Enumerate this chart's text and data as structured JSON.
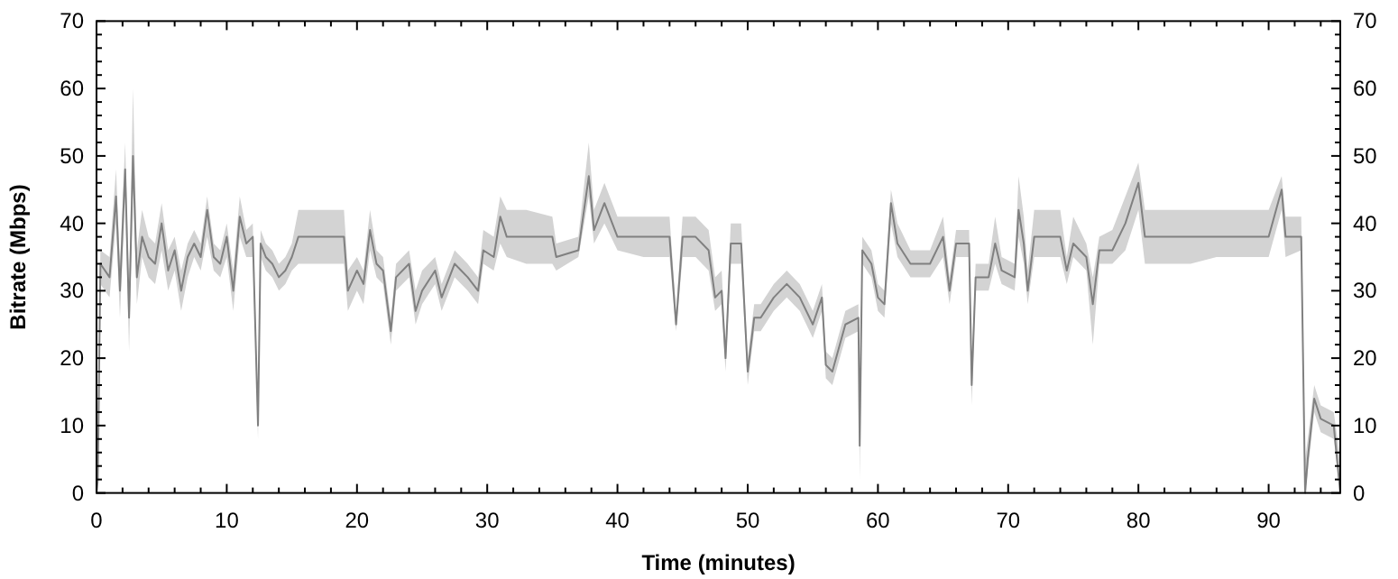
{
  "chart_data": {
    "type": "line",
    "xlabel": "Time (minutes)",
    "ylabel": "Bitrate (Mbps)",
    "xlim": [
      0,
      95.5
    ],
    "ylim": [
      0,
      70
    ],
    "y2lim": [
      0,
      70
    ],
    "xticks": [
      0,
      {
        "value": 2,
        "label": null
      },
      {
        "value": 4,
        "label": null
      },
      {
        "value": 6,
        "label": null
      },
      {
        "value": 8,
        "label": null
      },
      10,
      {
        "value": 12,
        "label": null
      },
      {
        "value": 14,
        "label": null
      },
      {
        "value": 16,
        "label": null
      },
      {
        "value": 18,
        "label": null
      },
      20,
      {
        "value": 22,
        "label": null
      },
      {
        "value": 24,
        "label": null
      },
      {
        "value": 26,
        "label": null
      },
      {
        "value": 28,
        "label": null
      },
      30,
      {
        "value": 32,
        "label": null
      },
      {
        "value": 34,
        "label": null
      },
      {
        "value": 36,
        "label": null
      },
      {
        "value": 38,
        "label": null
      },
      40,
      {
        "value": 42,
        "label": null
      },
      {
        "value": 44,
        "label": null
      },
      {
        "value": 46,
        "label": null
      },
      {
        "value": 48,
        "label": null
      },
      50,
      {
        "value": 52,
        "label": null
      },
      {
        "value": 54,
        "label": null
      },
      {
        "value": 56,
        "label": null
      },
      {
        "value": 58,
        "label": null
      },
      60,
      {
        "value": 62,
        "label": null
      },
      {
        "value": 64,
        "label": null
      },
      {
        "value": 66,
        "label": null
      },
      {
        "value": 68,
        "label": null
      },
      70,
      {
        "value": 72,
        "label": null
      },
      {
        "value": 74,
        "label": null
      },
      {
        "value": 76,
        "label": null
      },
      {
        "value": 78,
        "label": null
      },
      80,
      {
        "value": 82,
        "label": null
      },
      {
        "value": 84,
        "label": null
      },
      {
        "value": 86,
        "label": null
      },
      {
        "value": 88,
        "label": null
      },
      90,
      {
        "value": 92,
        "label": null
      },
      {
        "value": 94,
        "label": null
      }
    ],
    "yticks": [
      0,
      {
        "value": 2,
        "label": null
      },
      {
        "value": 4,
        "label": null
      },
      {
        "value": 6,
        "label": null
      },
      {
        "value": 8,
        "label": null
      },
      10,
      {
        "value": 12,
        "label": null
      },
      {
        "value": 14,
        "label": null
      },
      {
        "value": 16,
        "label": null
      },
      {
        "value": 18,
        "label": null
      },
      20,
      {
        "value": 22,
        "label": null
      },
      {
        "value": 24,
        "label": null
      },
      {
        "value": 26,
        "label": null
      },
      {
        "value": 28,
        "label": null
      },
      30,
      {
        "value": 32,
        "label": null
      },
      {
        "value": 34,
        "label": null
      },
      {
        "value": 36,
        "label": null
      },
      {
        "value": 38,
        "label": null
      },
      40,
      {
        "value": 42,
        "label": null
      },
      {
        "value": 44,
        "label": null
      },
      {
        "value": 46,
        "label": null
      },
      {
        "value": 48,
        "label": null
      },
      50,
      {
        "value": 52,
        "label": null
      },
      {
        "value": 54,
        "label": null
      },
      {
        "value": 56,
        "label": null
      },
      {
        "value": 58,
        "label": null
      },
      60,
      {
        "value": 62,
        "label": null
      },
      {
        "value": 64,
        "label": null
      },
      {
        "value": 66,
        "label": null
      },
      {
        "value": 68,
        "label": null
      },
      70
    ],
    "y2ticks": [
      0,
      {
        "value": 2,
        "label": null
      },
      {
        "value": 4,
        "label": null
      },
      {
        "value": 6,
        "label": null
      },
      {
        "value": 8,
        "label": null
      },
      10,
      {
        "value": 12,
        "label": null
      },
      {
        "value": 14,
        "label": null
      },
      {
        "value": 16,
        "label": null
      },
      {
        "value": 18,
        "label": null
      },
      20,
      {
        "value": 22,
        "label": null
      },
      {
        "value": 24,
        "label": null
      },
      {
        "value": 26,
        "label": null
      },
      {
        "value": 28,
        "label": null
      },
      30,
      {
        "value": 32,
        "label": null
      },
      {
        "value": 34,
        "label": null
      },
      {
        "value": 36,
        "label": null
      },
      {
        "value": 38,
        "label": null
      },
      40,
      {
        "value": 42,
        "label": null
      },
      {
        "value": 44,
        "label": null
      },
      {
        "value": 46,
        "label": null
      },
      {
        "value": 48,
        "label": null
      },
      50,
      {
        "value": 52,
        "label": null
      },
      {
        "value": 54,
        "label": null
      },
      {
        "value": 56,
        "label": null
      },
      {
        "value": 58,
        "label": null
      },
      60,
      {
        "value": 62,
        "label": null
      },
      {
        "value": 64,
        "label": null
      },
      {
        "value": 66,
        "label": null
      },
      {
        "value": 68,
        "label": null
      },
      70
    ],
    "grid": false,
    "marker": "none",
    "line_style": "solid",
    "series": [
      {
        "color": "#808080",
        "x": [
          0,
          0.1,
          0.3,
          1,
          1.5,
          1.8,
          2.2,
          2.5,
          2.8,
          3.1,
          3.5,
          4,
          4.5,
          5,
          5.5,
          6,
          6.5,
          7,
          7.5,
          8,
          8.5,
          9,
          9.5,
          10,
          10.5,
          11,
          11.5,
          12,
          12.4,
          12.6,
          13,
          13.5,
          14,
          14.5,
          15,
          15.5,
          17,
          19,
          19.3,
          20,
          20.5,
          21,
          21.5,
          22,
          22.6,
          23,
          24,
          24.5,
          25,
          26,
          26.5,
          27.5,
          28.5,
          29.3,
          29.7,
          30.5,
          31,
          31.5,
          33,
          35,
          35.3,
          37,
          37.8,
          38.2,
          39,
          40,
          42,
          43,
          44,
          44.5,
          45,
          46,
          47,
          47.5,
          48,
          48.3,
          48.7,
          49.5,
          50,
          50.5,
          51,
          52,
          53,
          54,
          55,
          55.7,
          56,
          56.5,
          57.5,
          58.5,
          58.6,
          58.8,
          59.5,
          60,
          60.5,
          61,
          61.5,
          62.5,
          63.5,
          64,
          65,
          65.5,
          66,
          67,
          67.2,
          67.5,
          68.5,
          69,
          69.5,
          70.5,
          70.8,
          71.2,
          71.5,
          72,
          74,
          74.5,
          75,
          76,
          76.5,
          77,
          78,
          79,
          80,
          80.5,
          82,
          84,
          86,
          88,
          90,
          91,
          91.3,
          92.5,
          92.8,
          93,
          93.5,
          94,
          95,
          95.5
        ],
        "values": [
          0,
          2,
          34,
          32,
          44,
          30,
          48,
          26,
          50,
          32,
          38,
          35,
          34,
          40,
          33,
          36,
          30,
          35,
          37,
          35,
          42,
          35,
          34,
          38,
          30,
          41,
          37,
          38,
          10,
          37,
          35,
          34,
          32,
          33,
          35,
          38,
          38,
          38,
          30,
          33,
          31,
          39,
          34,
          33,
          24,
          32,
          34,
          27,
          30,
          33,
          29,
          34,
          32,
          30,
          36,
          35,
          41,
          38,
          38,
          38,
          35,
          36,
          47,
          39,
          43,
          38,
          38,
          38,
          38,
          25,
          38,
          38,
          36,
          29,
          30,
          20,
          37,
          37,
          18,
          26,
          26,
          29,
          31,
          29,
          25,
          29,
          19,
          18,
          25,
          26,
          7,
          36,
          34,
          29,
          28,
          43,
          37,
          34,
          34,
          34,
          38,
          30,
          37,
          37,
          16,
          32,
          32,
          37,
          33,
          32,
          42,
          37,
          30,
          38,
          38,
          33,
          37,
          35,
          28,
          36,
          36,
          40,
          46,
          38,
          38,
          38,
          38,
          38,
          38,
          45,
          38,
          38,
          0,
          5,
          14,
          11,
          10,
          0
        ],
        "lower": [
          0,
          0,
          31,
          29,
          40,
          26,
          44,
          21,
          46,
          28,
          35,
          32,
          31,
          36,
          30,
          33,
          27,
          32,
          35,
          33,
          38,
          33,
          32,
          35,
          27,
          38,
          35,
          35,
          8,
          35,
          33,
          32,
          30,
          31,
          33,
          34,
          34,
          34,
          27,
          30,
          28,
          36,
          32,
          31,
          22,
          30,
          32,
          25,
          28,
          31,
          27,
          32,
          30,
          28,
          34,
          33,
          37,
          35,
          34,
          34,
          33,
          35,
          44,
          37,
          40,
          36,
          35,
          35,
          35,
          24,
          35,
          35,
          33,
          27,
          28,
          18,
          34,
          34,
          16,
          24,
          24,
          27,
          29,
          27,
          23,
          27,
          17,
          16,
          23,
          24,
          2,
          34,
          32,
          27,
          26,
          40,
          35,
          32,
          32,
          32,
          35,
          28,
          35,
          35,
          13,
          30,
          30,
          34,
          31,
          30,
          38,
          34,
          28,
          35,
          35,
          31,
          35,
          33,
          22,
          34,
          34,
          36,
          42,
          34,
          34,
          34,
          35,
          35,
          35,
          42,
          35,
          36,
          0,
          3,
          12,
          9,
          8,
          0
        ],
        "upper": [
          10,
          10,
          36,
          35,
          48,
          34,
          52,
          30,
          60,
          36,
          42,
          38,
          37,
          43,
          36,
          38,
          33,
          37,
          39,
          37,
          44,
          37,
          36,
          40,
          33,
          44,
          39,
          40,
          12,
          39,
          37,
          36,
          34,
          35,
          37,
          42,
          42,
          42,
          33,
          35,
          33,
          42,
          36,
          35,
          26,
          34,
          36,
          30,
          33,
          35,
          31,
          36,
          34,
          32,
          39,
          38,
          44,
          42,
          42,
          41,
          37,
          38,
          52,
          42,
          46,
          41,
          41,
          41,
          41,
          27,
          41,
          41,
          39,
          32,
          33,
          22,
          40,
          40,
          20,
          28,
          28,
          31,
          33,
          31,
          27,
          31,
          21,
          20,
          27,
          28,
          12,
          38,
          36,
          31,
          30,
          45,
          40,
          36,
          36,
          36,
          41,
          32,
          39,
          39,
          19,
          34,
          34,
          41,
          35,
          34,
          47,
          41,
          33,
          42,
          42,
          35,
          41,
          37,
          32,
          38,
          39,
          44,
          49,
          42,
          42,
          42,
          42,
          42,
          42,
          47,
          41,
          41,
          5,
          8,
          16,
          13,
          12,
          5
        ]
      }
    ]
  }
}
